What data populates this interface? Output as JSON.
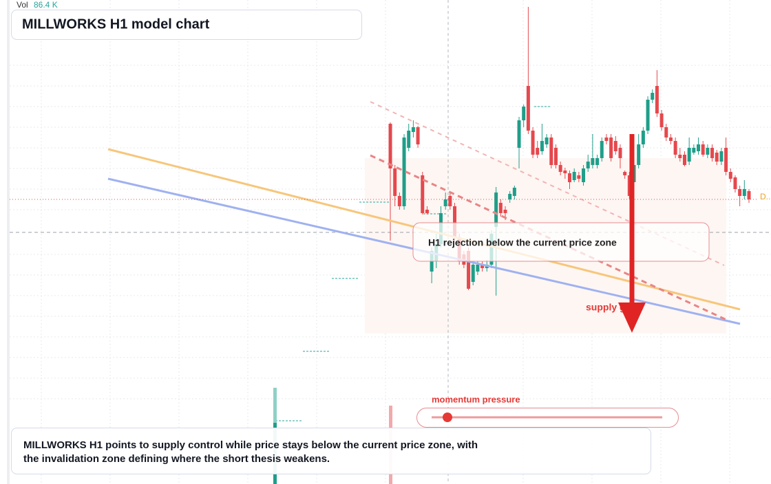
{
  "header": {
    "vol_label": "Vol",
    "vol_value": "86.4 K",
    "title": "MILLWORKS H1 model chart"
  },
  "chart_data": {
    "type": "candlestick",
    "open": [
      524,
      459,
      419,
      404,
      489,
      512,
      519,
      449,
      399,
      309,
      324,
      349,
      404,
      419,
      404,
      359,
      334,
      339,
      294,
      309,
      319,
      314,
      319,
      374,
      409,
      399,
      414,
      419,
      489,
      529,
      579,
      514,
      489,
      484,
      494,
      504,
      489,
      464,
      456,
      452,
      442,
      449,
      439,
      459,
      464,
      464,
      474,
      504,
      504,
      499,
      489,
      454,
      449,
      439,
      464,
      494,
      514,
      559,
      579,
      539,
      519,
      504,
      499,
      479,
      479,
      469,
      482,
      484,
      494,
      479,
      489,
      482,
      469,
      489,
      454,
      446,
      429,
      419,
      426
    ],
    "high": [
      526,
      464,
      424,
      509,
      524,
      529,
      521,
      454,
      404,
      344,
      364,
      404,
      424,
      424,
      409,
      364,
      339,
      344,
      324,
      324,
      324,
      326,
      369,
      432,
      414,
      404,
      426,
      434,
      534,
      552,
      694,
      519,
      499,
      524,
      509,
      509,
      494,
      469,
      460,
      456,
      459,
      454,
      464,
      479,
      509,
      479,
      504,
      509,
      509,
      506,
      494,
      456,
      454,
      469,
      509,
      519,
      564,
      574,
      602,
      544,
      524,
      509,
      504,
      489,
      484,
      504,
      494,
      504,
      499,
      494,
      494,
      486,
      489,
      504,
      459,
      449,
      434,
      442,
      429
    ],
    "low": [
      354,
      404,
      399,
      399,
      484,
      504,
      489,
      392,
      392,
      292,
      314,
      344,
      399,
      399,
      354,
      319,
      314,
      282,
      289,
      304,
      309,
      309,
      314,
      274,
      389,
      384,
      409,
      414,
      459,
      519,
      509,
      474,
      474,
      479,
      489,
      459,
      459,
      449,
      444,
      429,
      439,
      439,
      434,
      454,
      459,
      459,
      469,
      494,
      469,
      479,
      459,
      444,
      414,
      434,
      459,
      489,
      509,
      554,
      534,
      514,
      499,
      494,
      474,
      469,
      462,
      464,
      479,
      479,
      476,
      474,
      469,
      464,
      464,
      449,
      439,
      424,
      404,
      414,
      409
    ],
    "close": [
      459,
      419,
      404,
      504,
      514,
      519,
      494,
      394,
      394,
      339,
      349,
      394,
      414,
      404,
      359,
      324,
      319,
      284,
      319,
      319,
      314,
      319,
      364,
      424,
      394,
      394,
      422,
      431,
      529,
      549,
      514,
      479,
      479,
      499,
      504,
      464,
      464,
      454,
      452,
      439,
      454,
      444,
      459,
      469,
      474,
      474,
      499,
      499,
      474,
      484,
      474,
      449,
      419,
      464,
      494,
      514,
      559,
      569,
      539,
      519,
      504,
      499,
      479,
      474,
      464,
      489,
      489,
      494,
      479,
      489,
      474,
      469,
      484,
      454,
      444,
      429,
      419,
      429,
      414
    ],
    "ylim": [
      0,
      704
    ],
    "up_color": "#1f9e89",
    "down_color": "#e5484d",
    "last_price_color": "#e5484d"
  },
  "annotations": {
    "zone_note": "H1 rejection below the current price zone",
    "supply_label": "supply gate",
    "slider_label": "momentum pressure",
    "price_tag": "D..",
    "footnote_lines": [
      "MILLWORKS H1 points to supply control while price stays below the current price zone, with",
      "the invalidation zone defining where the short thesis weakens."
    ]
  }
}
